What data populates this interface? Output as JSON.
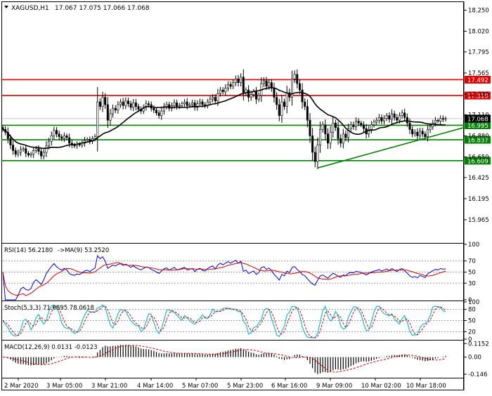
{
  "header": {
    "symbol": "XAGUSD,H1",
    "ohlc": "17.067 17.075 17.066 17.068"
  },
  "colors": {
    "resistance": "#e00000",
    "support": "#008000",
    "candle": "#000000",
    "ma": "#000000",
    "rsi": "#0000cc",
    "rsi_ma": "#cc0000",
    "stoch_main": "#1fb7c9",
    "stoch_signal": "#cc0000",
    "macd_hist": "#000000",
    "macd_signal": "#cc0000"
  },
  "chart_data": [
    {
      "type": "candlestick",
      "title": "XAGUSD,H1",
      "ylim": [
        15.72,
        18.33
      ],
      "y_ticks": [
        18.25,
        18.02,
        17.795,
        17.565,
        17.335,
        17.11,
        16.88,
        16.65,
        16.425,
        16.195,
        15.965
      ],
      "y_tick_labels": [
        "18.250",
        "18.020",
        "17.795",
        "17.565",
        "17.335",
        "17.110",
        "16.880",
        "16.650",
        "16.425",
        "16.195",
        "15.965"
      ],
      "x_labels": [
        "2 Mar 2020",
        "3 Mar 05:00",
        "3 Mar 21:00",
        "4 Mar 14:00",
        "5 Mar 07:00",
        "5 Mar 23:00",
        "6 Mar 16:00",
        "9 Mar 09:00",
        "10 Mar 02:00",
        "10 Mar 18:00"
      ],
      "current_price": 17.068,
      "current_price_label": "17.068",
      "levels": [
        {
          "value": 17.492,
          "label": "17.492",
          "kind": "resistance"
        },
        {
          "value": 17.319,
          "label": "17.319",
          "kind": "resistance"
        },
        {
          "value": 16.995,
          "label": "16.995",
          "kind": "support"
        },
        {
          "value": 16.837,
          "label": "16.837",
          "kind": "support"
        },
        {
          "value": 16.609,
          "label": "16.609",
          "kind": "support"
        }
      ],
      "trendline": {
        "from": {
          "x": "9 Mar 04:00",
          "y": 16.53
        },
        "to": {
          "x": "11 Mar 06:00",
          "y": 16.97
        }
      },
      "close_series": [
        16.95,
        16.92,
        16.85,
        16.78,
        16.72,
        16.68,
        16.7,
        16.73,
        16.74,
        16.69,
        16.67,
        16.68,
        16.72,
        16.74,
        16.71,
        16.66,
        16.7,
        16.77,
        16.82,
        16.88,
        16.94,
        16.9,
        16.87,
        16.85,
        16.88,
        16.86,
        16.8,
        16.78,
        16.77,
        16.79,
        16.78,
        16.8,
        16.83,
        16.84,
        16.82,
        16.85,
        16.87,
        17.25,
        17.2,
        17.3,
        17.22,
        17.05,
        17.12,
        17.18,
        17.16,
        17.22,
        17.25,
        17.21,
        17.26,
        17.23,
        17.19,
        17.24,
        17.2,
        17.17,
        17.15,
        17.19,
        17.23,
        17.22,
        17.18,
        17.16,
        17.13,
        17.1,
        17.15,
        17.2,
        17.22,
        17.18,
        17.21,
        17.24,
        17.2,
        17.21,
        17.23,
        17.25,
        17.21,
        17.22,
        17.24,
        17.19,
        17.23,
        17.25,
        17.22,
        17.21,
        17.25,
        17.28,
        17.3,
        17.26,
        17.34,
        17.38,
        17.36,
        17.4,
        17.44,
        17.42,
        17.46,
        17.5,
        17.46,
        17.52,
        17.35,
        17.38,
        17.3,
        17.33,
        17.36,
        17.28,
        17.32,
        17.45,
        17.48,
        17.42,
        17.46,
        17.4,
        17.3,
        17.22,
        17.1,
        17.25,
        17.2,
        17.35,
        17.3,
        17.5,
        17.55,
        17.45,
        17.38,
        17.25,
        17.2,
        17.05,
        16.88,
        16.7,
        16.6,
        16.78,
        16.95,
        17.0,
        16.9,
        16.8,
        16.92,
        17.02,
        16.97,
        16.85,
        16.8,
        16.9,
        16.86,
        16.96,
        17.0,
        16.98,
        17.04,
        17.02,
        17.0,
        16.96,
        16.9,
        16.95,
        17.0,
        17.03,
        17.05,
        17.08,
        17.04,
        17.07,
        17.1,
        17.06,
        17.12,
        17.08,
        17.05,
        17.1,
        17.13,
        17.08,
        17.02,
        16.95,
        16.9,
        16.92,
        16.88,
        16.93,
        16.9,
        16.87,
        16.95,
        16.98,
        17.02,
        17.05,
        17.04,
        17.07,
        17.06,
        17.068
      ],
      "ma_period": 20
    },
    {
      "type": "line",
      "title": "RSI(14) 56.2180",
      "ma_label": "->MA(9) 53.2520",
      "ylim": [
        0,
        100
      ],
      "y_ticks": [
        100,
        70,
        50,
        30,
        0
      ],
      "y_tick_labels": [
        "100",
        "70",
        "50",
        "30",
        "0"
      ]
    },
    {
      "type": "line",
      "title": "Stoch(5,3,3) 71.6895 78.0618",
      "ylim": [
        0,
        100
      ],
      "y_ticks": [
        100,
        80,
        50,
        20,
        0
      ],
      "y_tick_labels": [
        "100",
        "80",
        "50",
        "20",
        "0"
      ]
    },
    {
      "type": "bar",
      "title": "MACD(12,26,9) 0.0131 -0.0123",
      "ylim": [
        -0.17,
        0.135
      ],
      "y_ticks": [
        0.1152,
        0.0,
        -0.146
      ],
      "y_tick_labels": [
        "0.1152",
        "0.00",
        "-0.146"
      ]
    }
  ]
}
